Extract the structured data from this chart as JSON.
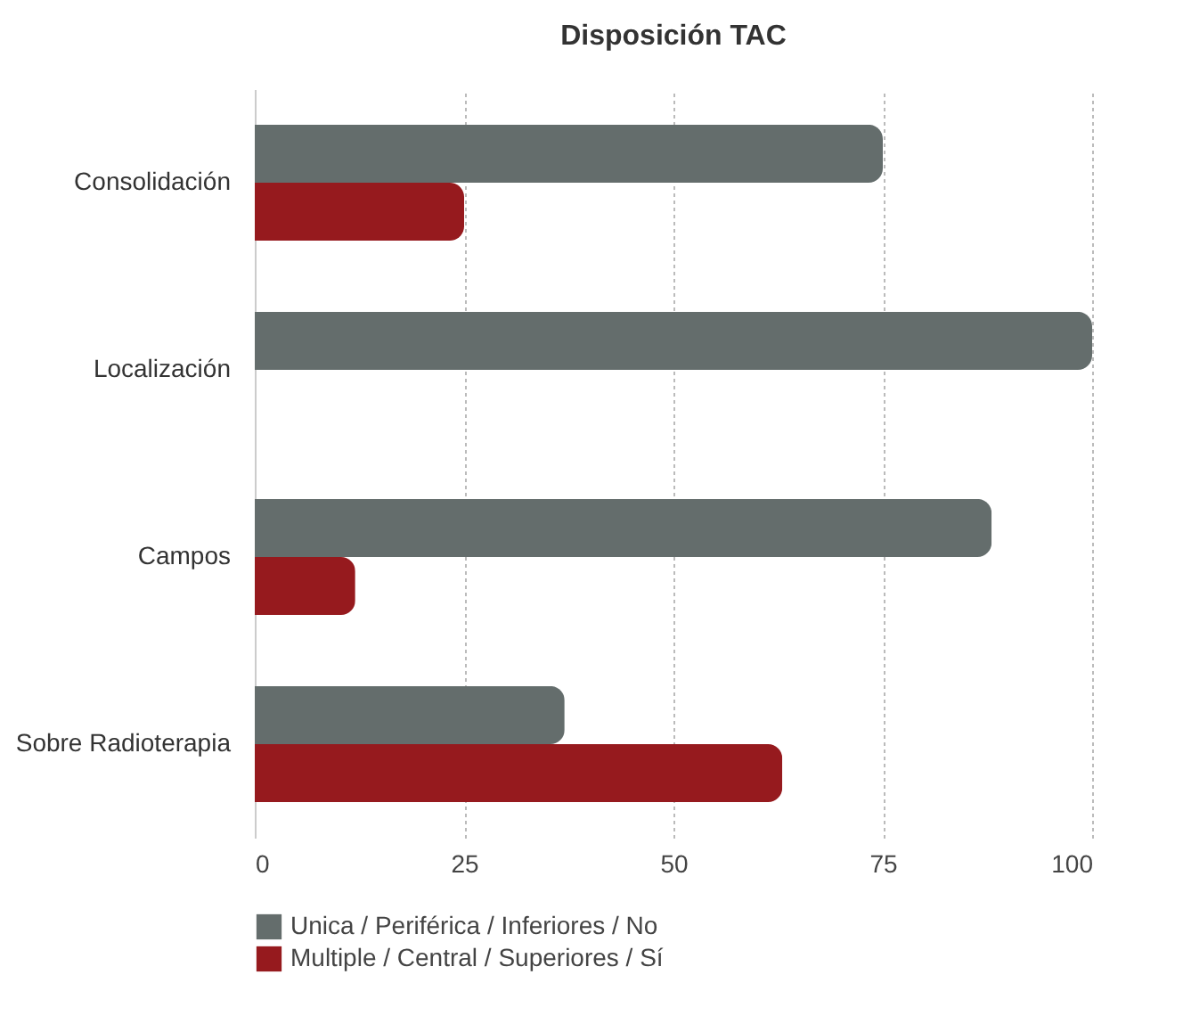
{
  "chart_data": {
    "type": "bar",
    "orientation": "horizontal",
    "title": "Disposición TAC",
    "categories": [
      "Consolidación",
      "Localización",
      "Campos",
      "Sobre Radioterapia"
    ],
    "series": [
      {
        "name": "Unica / Periférica / Inferiores / No",
        "color": "#646d6c",
        "values": [
          75,
          100,
          88,
          37
        ]
      },
      {
        "name": "Multiple / Central / Superiores / Sí",
        "color": "#961a1e",
        "values": [
          25,
          0,
          12,
          63
        ]
      }
    ],
    "xlim": [
      0,
      100
    ],
    "xticks": [
      0,
      25,
      50,
      75,
      100
    ],
    "grid": "x",
    "legend": "bottom"
  }
}
